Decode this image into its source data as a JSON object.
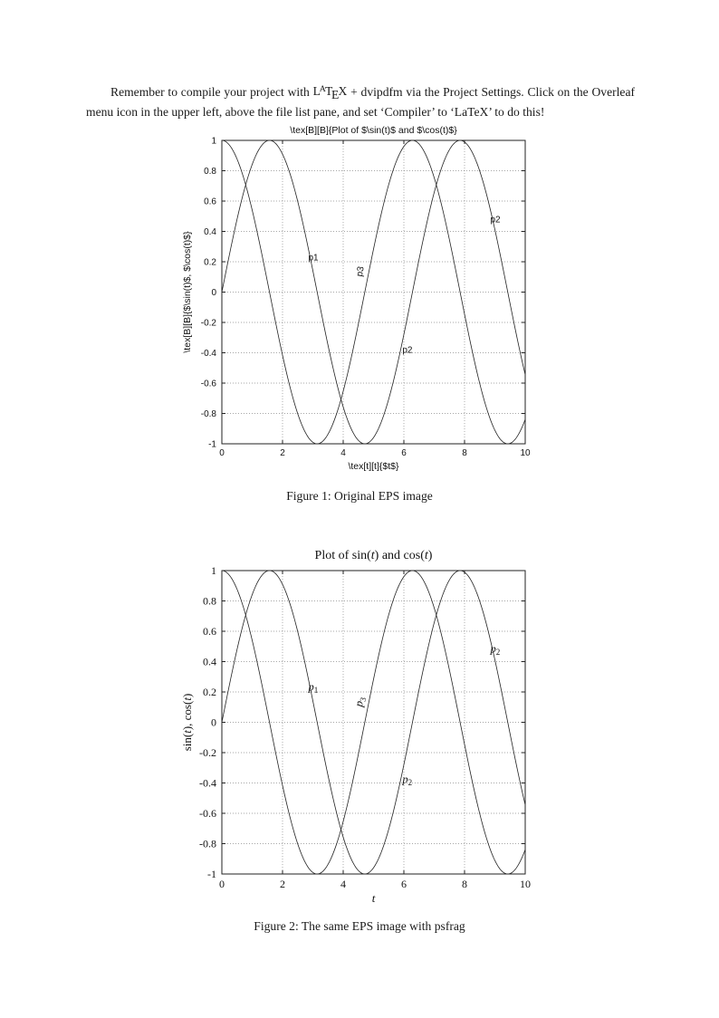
{
  "page": {
    "paragraph": {
      "part1": "Remember to compile your project with ",
      "latex": [
        "L",
        "A",
        "T",
        "E",
        "X"
      ],
      "part2": " + dvipdfm via the Project Settings. Click on the Overleaf menu icon in the upper left, above the file list pane, and set ‘Compiler’ to ‘LaTeX’ to do this!"
    },
    "caption1": "Figure 1: Original EPS image",
    "caption2": "Figure 2: The same EPS image with psfrag"
  },
  "chart_data": [
    {
      "type": "line",
      "name": "figure-1-original-eps",
      "title": "\\tex[B][B]{Plot of $\\sin(t)$ and $\\cos(t)$}",
      "title_segments": [
        [
          "\\tex[B][B]{Plot of $\\sin(t)$ and $\\cos(t)$}",
          "n"
        ]
      ],
      "xlabel": "\\tex[t][t]{$t$}",
      "xlabel_segments": [
        [
          "\\tex[t][t]{$t$}",
          "n"
        ]
      ],
      "ylabel": "\\tex[B][B]{$\\sin(t)$, $\\cos(t)$}",
      "ylabel_segments": [
        [
          "\\tex[B][B]{$\\sin(t)$, $\\cos(t)$}",
          "n"
        ]
      ],
      "xlim": [
        0,
        10
      ],
      "ylim": [
        -1,
        1
      ],
      "xticks": [
        0,
        2,
        4,
        6,
        8,
        10
      ],
      "xtick_labels": [
        "0",
        "2",
        "4",
        "6",
        "8",
        "10"
      ],
      "yticks": [
        -1,
        -0.8,
        -0.6,
        -0.4,
        -0.2,
        0,
        0.2,
        0.4,
        0.6,
        0.8,
        1
      ],
      "ytick_labels": [
        "-1",
        "-0.8",
        "-0.6",
        "-0.4",
        "-0.2",
        "0",
        "0.2",
        "0.4",
        "0.6",
        "0.8",
        "1"
      ],
      "grid": "dotted",
      "legend": "none",
      "series": [
        {
          "name": "sin(t)",
          "fn": "sin",
          "x_range": [
            0,
            10
          ]
        },
        {
          "name": "cos(t)",
          "fn": "cos",
          "x_range": [
            0,
            10
          ]
        }
      ],
      "annotations": [
        {
          "x": 2.85,
          "y": 0.21,
          "rot": 0,
          "segments": [
            [
              "p1",
              "n"
            ]
          ]
        },
        {
          "x": 4.62,
          "y": 0.1,
          "rot": -80,
          "segments": [
            [
              "p3",
              "n"
            ]
          ]
        },
        {
          "x": 5.95,
          "y": -0.4,
          "rot": 0,
          "segments": [
            [
              "p2",
              "n"
            ]
          ]
        },
        {
          "x": 8.85,
          "y": 0.46,
          "rot": 0,
          "segments": [
            [
              "p2",
              "n"
            ]
          ]
        }
      ]
    },
    {
      "type": "line",
      "name": "figure-2-psfrag",
      "title": "Plot of sin(t) and cos(t)",
      "title_segments": [
        [
          "Plot of sin(",
          "n"
        ],
        [
          "t",
          "i"
        ],
        [
          ") and cos(",
          "n"
        ],
        [
          "t",
          "i"
        ],
        [
          ")",
          "n"
        ]
      ],
      "xlabel": "t",
      "xlabel_segments": [
        [
          "t",
          "i"
        ]
      ],
      "ylabel": "sin(t), cos(t)",
      "ylabel_segments": [
        [
          "sin(",
          "n"
        ],
        [
          "t",
          "i"
        ],
        [
          "), cos(",
          "n"
        ],
        [
          "t",
          "i"
        ],
        [
          ")",
          "n"
        ]
      ],
      "xlim": [
        0,
        10
      ],
      "ylim": [
        -1,
        1
      ],
      "xticks": [
        0,
        2,
        4,
        6,
        8,
        10
      ],
      "xtick_labels": [
        "0",
        "2",
        "4",
        "6",
        "8",
        "10"
      ],
      "yticks": [
        -1,
        -0.8,
        -0.6,
        -0.4,
        -0.2,
        0,
        0.2,
        0.4,
        0.6,
        0.8,
        1
      ],
      "ytick_labels": [
        "-1",
        "-0.8",
        "-0.6",
        "-0.4",
        "-0.2",
        "0",
        "0.2",
        "0.4",
        "0.6",
        "0.8",
        "1"
      ],
      "grid": "dotted",
      "legend": "none",
      "series": [
        {
          "name": "sin(t)",
          "fn": "sin",
          "x_range": [
            0,
            10
          ]
        },
        {
          "name": "cos(t)",
          "fn": "cos",
          "x_range": [
            0,
            10
          ]
        }
      ],
      "annotations": [
        {
          "x": 2.85,
          "y": 0.21,
          "rot": 0,
          "segments": [
            [
              "p",
              "i"
            ],
            [
              "1",
              "sub"
            ]
          ]
        },
        {
          "x": 4.62,
          "y": 0.1,
          "rot": -80,
          "segments": [
            [
              "p",
              "i"
            ],
            [
              "3",
              "sub"
            ]
          ]
        },
        {
          "x": 5.95,
          "y": -0.4,
          "rot": 0,
          "segments": [
            [
              "p",
              "i"
            ],
            [
              "2",
              "sub"
            ]
          ]
        },
        {
          "x": 8.85,
          "y": 0.46,
          "rot": 0,
          "segments": [
            [
              "p",
              "i"
            ],
            [
              "2",
              "sub"
            ]
          ]
        }
      ]
    }
  ]
}
